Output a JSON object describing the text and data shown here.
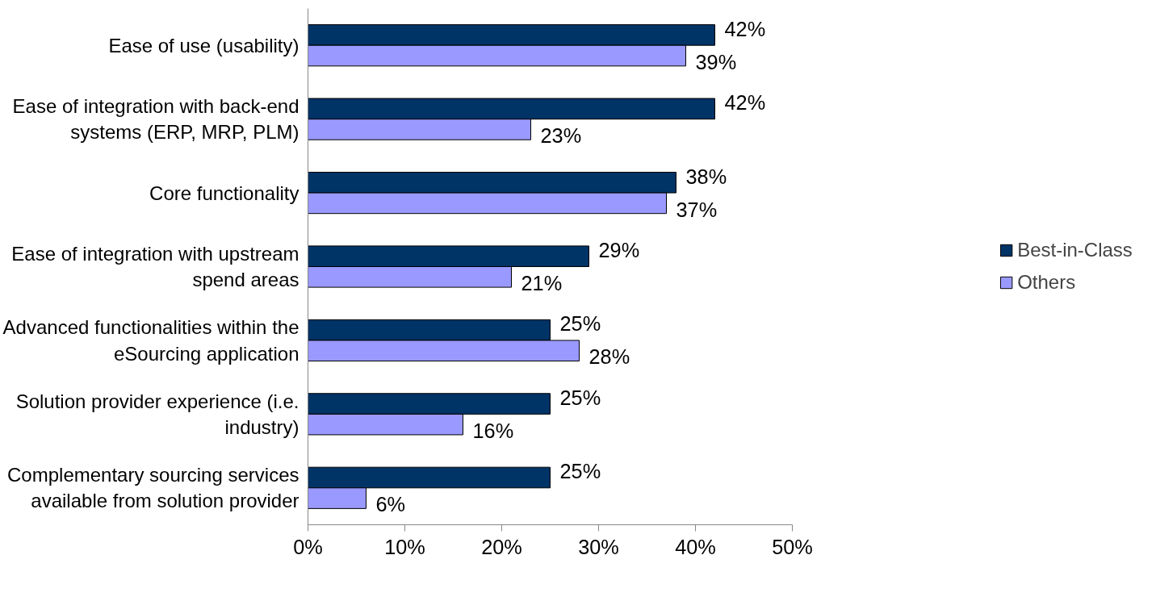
{
  "chart_data": {
    "type": "bar",
    "orientation": "horizontal",
    "categories": [
      "Ease of use (usability)",
      "Ease of integration with back-end systems (ERP, MRP, PLM)",
      "Core functionality",
      "Ease of integration with upstream spend areas",
      "Advanced functionalities within the eSourcing application",
      "Solution provider experience (i.e. industry)",
      "Complementary sourcing services available from solution provider"
    ],
    "series": [
      {
        "name": "Best-in-Class",
        "color": "#003366",
        "values": [
          42,
          42,
          38,
          29,
          25,
          25,
          25
        ],
        "value_labels": [
          "42%",
          "42%",
          "38%",
          "29%",
          "25%",
          "25%",
          "25%"
        ]
      },
      {
        "name": "Others",
        "color": "#9999ff",
        "values": [
          39,
          23,
          37,
          21,
          28,
          16,
          6
        ],
        "value_labels": [
          "39%",
          "23%",
          "37%",
          "21%",
          "28%",
          "16%",
          "6%"
        ]
      }
    ],
    "xlim": [
      0,
      50
    ],
    "xticks": [
      {
        "value": 0,
        "label": "0%"
      },
      {
        "value": 10,
        "label": "10%"
      },
      {
        "value": 20,
        "label": "20%"
      },
      {
        "value": 30,
        "label": "30%"
      },
      {
        "value": 40,
        "label": "40%"
      },
      {
        "value": 50,
        "label": "50%"
      }
    ],
    "grid": false,
    "legend": "right"
  }
}
